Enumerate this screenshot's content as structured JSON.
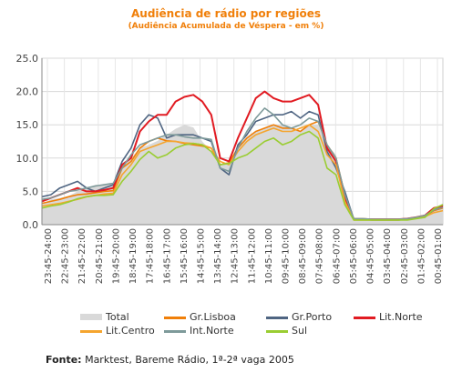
{
  "title": "Audiência de rádio por regiões",
  "subtitle": "(Audiência Acumulada de Véspera - em %)",
  "source_label": "Fonte:",
  "source_text": " Marktest, Bareme Rádio, 1ª-2ª vaga 2005",
  "chart_data": {
    "type": "line",
    "ylim": [
      0,
      25
    ],
    "y_ticks": [
      "0.0",
      "5.0",
      "10.0",
      "15.0",
      "20.0",
      "25.0"
    ],
    "x_tick_labels": [
      "23:45-24:00",
      "22:45-23:00",
      "21:45-22:00",
      "20:45-21:00",
      "19:45-20:00",
      "18:45-19:00",
      "17:45-18:00",
      "16:45-17:00",
      "15:45-16:00",
      "14:45-15:00",
      "13:45-14:00",
      "12:45-13:00",
      "11:45-12:00",
      "10:45-11:00",
      "09:45-10:00",
      "08:45-09:00",
      "07:45-08:00",
      "06:45-07:00",
      "05:45-06:00",
      "04:45-05:00",
      "03:45-04:00",
      "02:45-03:00",
      "01:45-02:00",
      "00:45-01:00"
    ],
    "grid": true,
    "series": [
      {
        "name": "Total",
        "kind": "area",
        "color": "#d9d9d9",
        "values": [
          3,
          3.8,
          4,
          4.3,
          5,
          5.5,
          6,
          6,
          6,
          9,
          10,
          11.5,
          12,
          12.6,
          13.5,
          14.4,
          15,
          14.6,
          12.5,
          11,
          9,
          9.4,
          11.5,
          13,
          14,
          14.5,
          15,
          15,
          14.5,
          14,
          15,
          15,
          12,
          10.5,
          5,
          1,
          1,
          0.9,
          0.9,
          0.9,
          0.9,
          1,
          1.2,
          1.5,
          2.4,
          3
        ]
      },
      {
        "name": "Gr.Lisboa",
        "kind": "line",
        "color": "#f07f09",
        "values": [
          3.2,
          3.5,
          3.8,
          4.2,
          4.5,
          4.6,
          4.8,
          5,
          5.1,
          8.5,
          9.5,
          11.5,
          12.5,
          13,
          12.6,
          12.5,
          12.2,
          12,
          11.8,
          11.5,
          9,
          9.3,
          11.5,
          13,
          14,
          14.5,
          15,
          14.5,
          14.5,
          14,
          15,
          15.5,
          12,
          10,
          4.5,
          0.9,
          0.9,
          0.8,
          0.8,
          0.8,
          0.8,
          0.9,
          1,
          1.3,
          2.1,
          2.5
        ]
      },
      {
        "name": "Gr.Porto",
        "kind": "line",
        "color": "#4f6582",
        "values": [
          4.2,
          4.5,
          5.5,
          6,
          6.5,
          5.5,
          5,
          5.5,
          6,
          9.5,
          11.5,
          15,
          16.5,
          16,
          13,
          13.5,
          13.5,
          13.5,
          13,
          12.5,
          8.5,
          7.5,
          12,
          13.5,
          15.5,
          16,
          16.5,
          16.5,
          17,
          16,
          17,
          16.5,
          11,
          8.5,
          5,
          0.8,
          0.8,
          0.7,
          0.7,
          0.7,
          0.7,
          0.8,
          1,
          1.2,
          2.3,
          3
        ]
      },
      {
        "name": "Lit.Norte",
        "kind": "line",
        "color": "#e11b22",
        "values": [
          3.5,
          4,
          4.5,
          5,
          5.5,
          5,
          5,
          5.2,
          5.5,
          9,
          10,
          14,
          15.5,
          16.5,
          16.5,
          18.5,
          19.2,
          19.5,
          18.5,
          16.5,
          10,
          9.5,
          13,
          16,
          19,
          20,
          19,
          18.5,
          18.5,
          19,
          19.5,
          18,
          11.5,
          9.5,
          4,
          0.8,
          0.8,
          0.8,
          0.8,
          0.8,
          0.8,
          0.9,
          1.1,
          1.4,
          2.5,
          2.8
        ]
      },
      {
        "name": "Lit.Centro",
        "kind": "line",
        "color": "#f5a52e",
        "values": [
          2.8,
          3,
          3.2,
          3.5,
          3.8,
          4.2,
          4.4,
          4.6,
          4.7,
          7.5,
          9,
          11,
          11.5,
          12,
          12.5,
          12.5,
          12.3,
          12.2,
          12,
          11.5,
          9.5,
          9,
          11,
          12.5,
          13.5,
          14,
          14.5,
          14,
          14,
          14.5,
          15,
          14,
          10.5,
          9,
          3.5,
          0.7,
          0.7,
          0.7,
          0.7,
          0.7,
          0.7,
          0.8,
          1,
          1.2,
          1.8,
          2.1
        ]
      },
      {
        "name": "Int.Norte",
        "kind": "line",
        "color": "#7e9a9a",
        "values": [
          3.8,
          4,
          4.5,
          5,
          5.2,
          5.5,
          5.8,
          6,
          6.2,
          8.5,
          10.5,
          12,
          12.5,
          13,
          13.5,
          13.5,
          13.2,
          13,
          13,
          12.8,
          8.5,
          8,
          11.5,
          14,
          16,
          17.5,
          16.5,
          15,
          14.5,
          15,
          16,
          15.5,
          12,
          10,
          4.5,
          0.9,
          0.9,
          0.8,
          0.8,
          0.8,
          0.8,
          0.9,
          1.1,
          1.4,
          2.2,
          2.6
        ]
      },
      {
        "name": "Sul",
        "kind": "line",
        "color": "#9acd32",
        "values": [
          2.5,
          2.8,
          3,
          3.4,
          3.9,
          4.2,
          4.4,
          4.4,
          4.5,
          6.5,
          8,
          9.8,
          11,
          10,
          10.5,
          11.5,
          12,
          12.2,
          12,
          11,
          9,
          9.2,
          10,
          10.5,
          11.5,
          12.5,
          13,
          12,
          12.5,
          13.5,
          14,
          13,
          8.5,
          7.5,
          3,
          0.7,
          0.7,
          0.7,
          0.7,
          0.7,
          0.7,
          0.7,
          0.9,
          1.1,
          2.4,
          3
        ]
      }
    ]
  }
}
